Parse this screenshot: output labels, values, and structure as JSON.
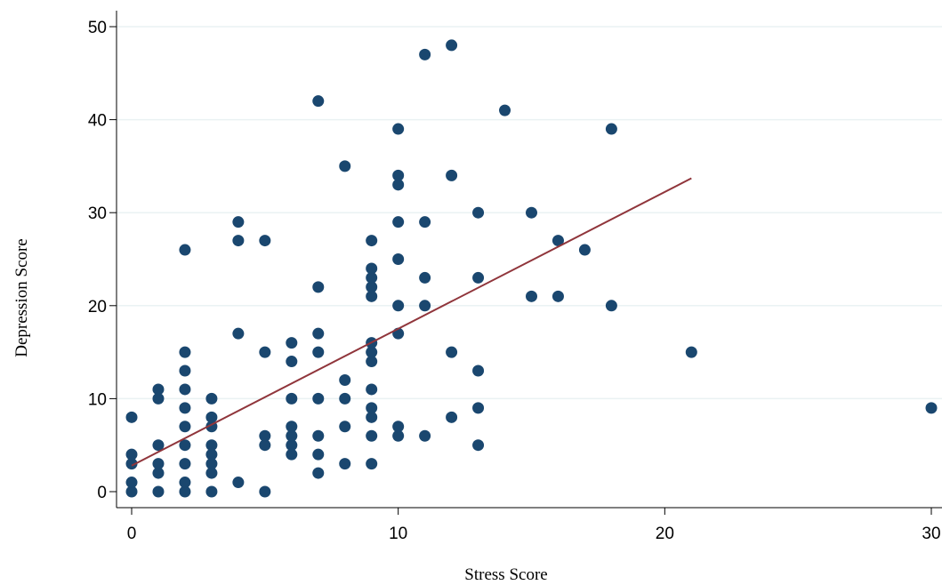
{
  "chart_data": {
    "type": "scatter",
    "title": "",
    "xlabel": "Stress Score",
    "ylabel": "Depression Score",
    "xlim": [
      0,
      30
    ],
    "ylim": [
      0,
      50
    ],
    "xticks": [
      0,
      10,
      20,
      30
    ],
    "yticks": [
      0,
      10,
      20,
      30,
      40,
      50
    ],
    "grid": true,
    "legend": "none",
    "colors": {
      "points": "#1a476f",
      "fit_line": "#90353b",
      "grid": "#eaf2f3",
      "axis": "#000000"
    },
    "series": [
      {
        "type": "scatter",
        "points": [
          [
            0,
            0
          ],
          [
            0,
            1
          ],
          [
            0,
            3
          ],
          [
            0,
            4
          ],
          [
            0,
            8
          ],
          [
            1,
            0
          ],
          [
            1,
            2
          ],
          [
            1,
            3
          ],
          [
            1,
            5
          ],
          [
            1,
            10
          ],
          [
            1,
            11
          ],
          [
            2,
            0
          ],
          [
            2,
            1
          ],
          [
            2,
            3
          ],
          [
            2,
            5
          ],
          [
            2,
            7
          ],
          [
            2,
            9
          ],
          [
            2,
            11
          ],
          [
            2,
            13
          ],
          [
            2,
            15
          ],
          [
            2,
            26
          ],
          [
            3,
            0
          ],
          [
            3,
            2
          ],
          [
            3,
            3
          ],
          [
            3,
            4
          ],
          [
            3,
            5
          ],
          [
            3,
            7
          ],
          [
            3,
            8
          ],
          [
            3,
            10
          ],
          [
            4,
            1
          ],
          [
            4,
            17
          ],
          [
            4,
            27
          ],
          [
            4,
            29
          ],
          [
            5,
            0
          ],
          [
            5,
            5
          ],
          [
            5,
            6
          ],
          [
            5,
            15
          ],
          [
            5,
            27
          ],
          [
            6,
            4
          ],
          [
            6,
            5
          ],
          [
            6,
            6
          ],
          [
            6,
            7
          ],
          [
            6,
            10
          ],
          [
            6,
            14
          ],
          [
            6,
            16
          ],
          [
            7,
            2
          ],
          [
            7,
            4
          ],
          [
            7,
            6
          ],
          [
            7,
            10
          ],
          [
            7,
            15
          ],
          [
            7,
            17
          ],
          [
            7,
            22
          ],
          [
            7,
            42
          ],
          [
            8,
            3
          ],
          [
            8,
            7
          ],
          [
            8,
            10
          ],
          [
            8,
            12
          ],
          [
            8,
            35
          ],
          [
            9,
            3
          ],
          [
            9,
            6
          ],
          [
            9,
            8
          ],
          [
            9,
            9
          ],
          [
            9,
            11
          ],
          [
            9,
            14
          ],
          [
            9,
            15
          ],
          [
            9,
            16
          ],
          [
            9,
            21
          ],
          [
            9,
            22
          ],
          [
            9,
            23
          ],
          [
            9,
            24
          ],
          [
            9,
            27
          ],
          [
            10,
            6
          ],
          [
            10,
            7
          ],
          [
            10,
            17
          ],
          [
            10,
            20
          ],
          [
            10,
            25
          ],
          [
            10,
            29
          ],
          [
            10,
            33
          ],
          [
            10,
            34
          ],
          [
            10,
            39
          ],
          [
            11,
            6
          ],
          [
            11,
            20
          ],
          [
            11,
            23
          ],
          [
            11,
            29
          ],
          [
            11,
            47
          ],
          [
            12,
            8
          ],
          [
            12,
            15
          ],
          [
            12,
            34
          ],
          [
            12,
            48
          ],
          [
            13,
            5
          ],
          [
            13,
            9
          ],
          [
            13,
            13
          ],
          [
            13,
            23
          ],
          [
            13,
            30
          ],
          [
            14,
            41
          ],
          [
            15,
            21
          ],
          [
            15,
            30
          ],
          [
            16,
            21
          ],
          [
            16,
            27
          ],
          [
            17,
            26
          ],
          [
            18,
            20
          ],
          [
            18,
            39
          ],
          [
            21,
            15
          ],
          [
            30,
            9
          ]
        ]
      },
      {
        "type": "line",
        "points": [
          [
            0,
            2.8
          ],
          [
            21,
            33.7
          ]
        ]
      }
    ]
  }
}
